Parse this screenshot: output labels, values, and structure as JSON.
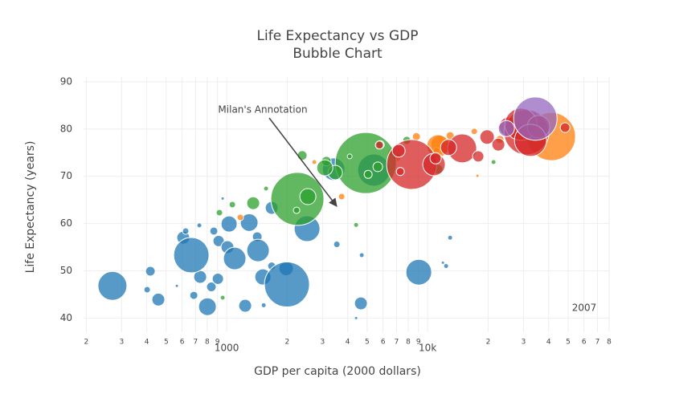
{
  "chart_data": {
    "type": "scatter",
    "title": "Life Expectancy vs GDP",
    "subtitle": "Bubble Chart",
    "x_label": "GDP per capita (2000 dollars)",
    "y_label": "Life Expectancy (years)",
    "x_log": true,
    "grid": true,
    "xlim": [
      194,
      80000
    ],
    "ylim": [
      37,
      91
    ],
    "xticks": [
      {
        "value": 200,
        "label": "2"
      },
      {
        "value": 300,
        "label": "3"
      },
      {
        "value": 400,
        "label": "4"
      },
      {
        "value": 500,
        "label": "5"
      },
      {
        "value": 600,
        "label": "6"
      },
      {
        "value": 700,
        "label": "7"
      },
      {
        "value": 800,
        "label": "8"
      },
      {
        "value": 900,
        "label": "9"
      },
      1000,
      {
        "value": 2000,
        "label": "2"
      },
      {
        "value": 3000,
        "label": "3"
      },
      {
        "value": 4000,
        "label": "4"
      },
      {
        "value": 5000,
        "label": "5"
      },
      {
        "value": 6000,
        "label": "6"
      },
      {
        "value": 7000,
        "label": "7"
      },
      {
        "value": 8000,
        "label": "8"
      },
      {
        "value": 9000,
        "label": "9"
      },
      {
        "value": 10000,
        "label": "10k"
      },
      {
        "value": 20000,
        "label": "2"
      },
      {
        "value": 30000,
        "label": "3"
      },
      {
        "value": 40000,
        "label": "4"
      },
      {
        "value": 50000,
        "label": "5"
      },
      {
        "value": 60000,
        "label": "6"
      },
      {
        "value": 70000,
        "label": "7"
      },
      {
        "value": 80000,
        "label": "8"
      }
    ],
    "yticks": [
      40,
      50,
      60,
      70,
      80,
      90
    ],
    "annotations": [
      "Milan's Annotation",
      "2007"
    ],
    "series": [
      {
        "color": "#1f77b4",
        "x": [
          270,
          417,
          402,
          457,
          565,
          686,
          738,
          802,
          839,
          904,
          608,
          667,
          625,
          731,
          863,
          1028,
          912,
          1009,
          1096,
          1236,
          1294,
          1419,
          1432,
          1514,
          1528,
          1675,
          1675,
          1977,
          1995,
          2512,
          3532,
          4699,
          4655,
          4406,
          9036,
          12940,
          11910,
          12360,
          3404,
          5395,
          955
        ],
        "values": [
          46.8,
          49.9,
          46.0,
          43.9,
          46.8,
          44.8,
          48.7,
          42.4,
          46.6,
          48.3,
          57.0,
          53.3,
          58.4,
          59.6,
          58.4,
          59.9,
          56.3,
          55.0,
          52.6,
          42.6,
          60.2,
          57.2,
          54.3,
          48.7,
          42.7,
          51.0,
          63.3,
          50.5,
          47.1,
          58.9,
          55.6,
          53.3,
          43.1,
          40.0,
          49.7,
          57.0,
          51.7,
          51.0,
          71.5,
          71.3,
          65.3
        ],
        "sizes": [
          324,
          36,
          16,
          64,
          4,
          25,
          64,
          121,
          36,
          49,
          64,
          484,
          16,
          9,
          25,
          100,
          49,
          64,
          196,
          64,
          121,
          36,
          196,
          100,
          9,
          25,
          64,
          81,
          784,
          256,
          16,
          9,
          64,
          4,
          256,
          9,
          4,
          9,
          196,
          400,
          4
        ]
      },
      {
        "color": "#ff7f0e",
        "x": [
          41300,
          2729,
          3733,
          1169,
          6607,
          7047,
          8790,
          11590,
          12940,
          11070,
          17700,
          17060,
          22900,
          27040,
          11270
        ],
        "values": [
          78.4,
          73.0,
          65.7,
          61.3,
          75.0,
          74.0,
          78.4,
          76.7,
          78.6,
          75.4,
          70.1,
          79.5,
          77.8,
          80.1,
          76.4
        ],
        "sizes": [
          900,
          9,
          16,
          16,
          25,
          25,
          25,
          144,
          25,
          16,
          4,
          16,
          25,
          100,
          196
        ]
      },
      {
        "color": "#2ca02c",
        "x": [
          2249,
          4920,
          2535,
          2377,
          3133,
          3467,
          4093,
          5058,
          5649,
          5808,
          1355,
          1067,
          920,
          1570,
          2228,
          4406,
          955,
          11270,
          21280,
          7870,
          3079
        ],
        "values": [
          65.2,
          72.8,
          65.7,
          74.4,
          73.2,
          70.8,
          74.2,
          70.4,
          72.0,
          76.7,
          64.3,
          64.0,
          62.3,
          67.4,
          62.8,
          59.7,
          44.3,
          71.5,
          73.0,
          77.6,
          71.8
        ],
        "sizes": [
          1089,
          1444,
          100,
          36,
          36,
          81,
          9,
          25,
          36,
          25,
          64,
          16,
          16,
          9,
          16,
          9,
          9,
          36,
          9,
          25,
          100
        ]
      },
      {
        "color": "#d62728",
        "x": [
          8318,
          10760,
          14860,
          5754,
          7178,
          10960,
          17860,
          19770,
          22490,
          25350,
          31050,
          29110,
          35650,
          32510,
          48310,
          7311,
          12710
        ],
        "values": [
          72.5,
          72.5,
          75.9,
          76.6,
          75.4,
          73.8,
          74.2,
          78.3,
          76.7,
          80.5,
          79.3,
          81.0,
          80.5,
          77.6,
          80.3,
          71.0,
          76.1
        ],
        "sizes": [
          961,
          196,
          324,
          25,
          64,
          49,
          49,
          81,
          64,
          144,
          784,
          400,
          196,
          400,
          36,
          25,
          100
        ]
      },
      {
        "color": "#9467bd",
        "x": [
          34360,
          24660
        ],
        "values": [
          82.2,
          80.1
        ],
        "sizes": [
          729,
          100
        ]
      }
    ]
  }
}
